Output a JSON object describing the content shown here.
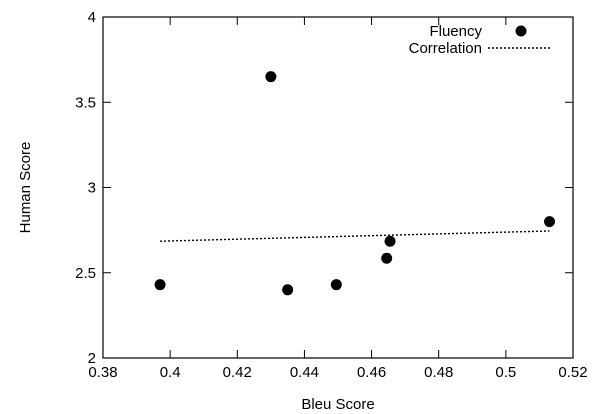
{
  "chart_data": {
    "type": "scatter",
    "title": "",
    "xlabel": "Bleu Score",
    "ylabel": "Human Score",
    "xlim": [
      0.38,
      0.52
    ],
    "ylim": [
      2,
      4
    ],
    "x_ticks": [
      0.38,
      0.4,
      0.42,
      0.44,
      0.46,
      0.48,
      0.5,
      0.52
    ],
    "y_ticks": [
      2,
      2.5,
      3,
      3.5,
      4
    ],
    "grid": false,
    "legend_position": "top-right",
    "series": [
      {
        "name": "Fluency",
        "type": "scatter",
        "color": "#000000",
        "points": [
          {
            "x": 0.397,
            "y": 2.43
          },
          {
            "x": 0.43,
            "y": 3.65
          },
          {
            "x": 0.435,
            "y": 2.4
          },
          {
            "x": 0.4495,
            "y": 2.43
          },
          {
            "x": 0.4645,
            "y": 2.585
          },
          {
            "x": 0.4655,
            "y": 2.685
          },
          {
            "x": 0.513,
            "y": 2.8
          }
        ]
      },
      {
        "name": "Correlation",
        "type": "line",
        "style": "dotted",
        "color": "#000000",
        "points": [
          {
            "x": 0.397,
            "y": 2.685
          },
          {
            "x": 0.513,
            "y": 2.745
          }
        ]
      }
    ]
  }
}
